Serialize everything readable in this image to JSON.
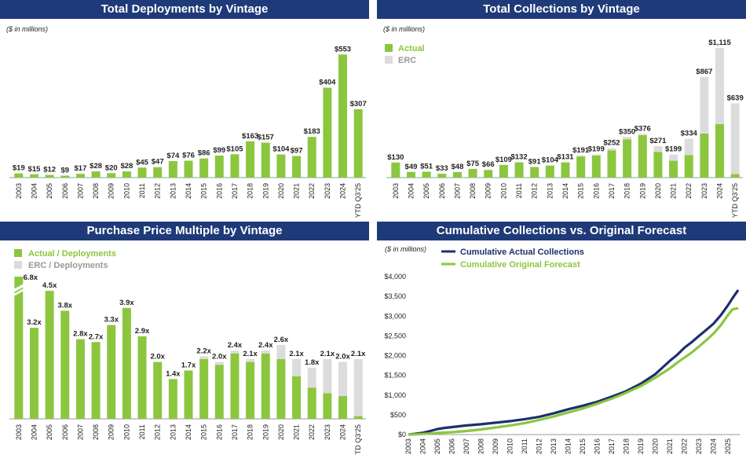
{
  "chart_data": [
    {
      "type": "bar",
      "title": "Total Deployments by Vintage",
      "subtitle": "($ in millions)",
      "categories": [
        "2003",
        "2004",
        "2005",
        "2006",
        "2007",
        "2008",
        "2009",
        "2010",
        "2011",
        "2012",
        "2013",
        "2014",
        "2015",
        "2016",
        "2017",
        "2018",
        "2019",
        "2020",
        "2021",
        "2022",
        "2023",
        "2024",
        "YTD Q3'25"
      ],
      "values": [
        19,
        15,
        12,
        9,
        17,
        28,
        20,
        28,
        45,
        47,
        74,
        76,
        86,
        99,
        105,
        163,
        157,
        104,
        97,
        183,
        404,
        553,
        307
      ],
      "data_labels": [
        "$19",
        "$15",
        "$12",
        "$9",
        "$17",
        "$28",
        "$20",
        "$28",
        "$45",
        "$47",
        "$74",
        "$76",
        "$86",
        "$99",
        "$105",
        "$163",
        "$157",
        "$104",
        "$97",
        "$183",
        "$404",
        "$553",
        "$307"
      ],
      "ylim": [
        0,
        600
      ],
      "color": "#8cc63f"
    },
    {
      "type": "bar",
      "stacked": true,
      "title": "Total Collections by Vintage",
      "subtitle": "($ in millions)",
      "categories": [
        "2003",
        "2004",
        "2005",
        "2006",
        "2007",
        "2008",
        "2009",
        "2010",
        "2011",
        "2012",
        "2013",
        "2014",
        "2015",
        "2016",
        "2017",
        "2018",
        "2019",
        "2020",
        "2021",
        "2022",
        "2023",
        "2024",
        "YTD Q3'25"
      ],
      "series": [
        {
          "name": "Actual",
          "color": "#8cc63f",
          "values": [
            130,
            49,
            51,
            33,
            48,
            75,
            66,
            109,
            132,
            91,
            104,
            131,
            182,
            190,
            235,
            330,
            365,
            220,
            145,
            194,
            380,
            460,
            30
          ]
        },
        {
          "name": "ERC",
          "color": "#dcdcdc",
          "values": [
            0,
            0,
            0,
            0,
            0,
            0,
            0,
            0,
            0,
            0,
            0,
            0,
            9,
            9,
            17,
            20,
            11,
            51,
            54,
            140,
            487,
            655,
            609
          ]
        }
      ],
      "totals": [
        130,
        49,
        51,
        33,
        48,
        75,
        66,
        109,
        132,
        91,
        104,
        131,
        191,
        199,
        252,
        350,
        376,
        271,
        199,
        334,
        867,
        1115,
        639
      ],
      "data_labels": [
        "$130",
        "$49",
        "$51",
        "$33",
        "$48",
        "$75",
        "$66",
        "$109",
        "$132",
        "$91",
        "$104",
        "$131",
        "$191",
        "$199",
        "$252",
        "$350",
        "$376",
        "$271",
        "$199",
        "$334",
        "$867",
        "$1,115",
        "$639"
      ],
      "ylim": [
        0,
        1150
      ],
      "legend_position": "top-left"
    },
    {
      "type": "bar",
      "stacked": true,
      "title": "Purchase Price Multiple by Vintage",
      "categories": [
        "2003",
        "2004",
        "2005",
        "2006",
        "2007",
        "2008",
        "2009",
        "2010",
        "2011",
        "2012",
        "2013",
        "2014",
        "2015",
        "2016",
        "2017",
        "2018",
        "2019",
        "2020",
        "2021",
        "2022",
        "2023",
        "2024",
        "YTD Q3'25"
      ],
      "series": [
        {
          "name": "Actual / Deployments",
          "color": "#8cc63f",
          "values": [
            6.8,
            3.2,
            4.5,
            3.8,
            2.8,
            2.7,
            3.3,
            3.9,
            2.9,
            2.0,
            1.4,
            1.7,
            2.1,
            1.9,
            2.3,
            2.0,
            2.3,
            2.1,
            1.5,
            1.1,
            0.9,
            0.8,
            0.1
          ]
        },
        {
          "name": "ERC / Deployments",
          "color": "#dcdcdc",
          "values": [
            0,
            0,
            0,
            0,
            0,
            0,
            0,
            0,
            0,
            0,
            0,
            0,
            0.1,
            0.1,
            0.1,
            0.1,
            0.1,
            0.5,
            0.6,
            0.7,
            1.2,
            1.2,
            2.0
          ]
        }
      ],
      "totals": [
        6.8,
        3.2,
        4.5,
        3.8,
        2.8,
        2.7,
        3.3,
        3.9,
        2.9,
        2.0,
        1.4,
        1.7,
        2.2,
        2.0,
        2.4,
        2.1,
        2.4,
        2.6,
        2.1,
        1.8,
        2.1,
        2.0,
        2.1
      ],
      "data_labels": [
        "6.8x",
        "3.2x",
        "4.5x",
        "3.8x",
        "2.8x",
        "2.7x",
        "3.3x",
        "3.9x",
        "2.9x",
        "2.0x",
        "1.4x",
        "1.7x",
        "2.2x",
        "2.0x",
        "2.4x",
        "2.1x",
        "2.4x",
        "2.6x",
        "2.1x",
        "1.8x",
        "2.1x",
        "2.0x",
        "2.1x"
      ],
      "ylim": [
        0,
        5.0
      ],
      "axis_break": true,
      "legend_position": "top-left"
    },
    {
      "type": "line",
      "title": "Cumulative Collections vs. Original Forecast",
      "subtitle": "($ in millions)",
      "x_labels": [
        "2003",
        "2004",
        "2005",
        "2006",
        "2007",
        "2008",
        "2009",
        "2010",
        "2011",
        "2012",
        "2013",
        "2014",
        "2015",
        "2016",
        "2017",
        "2018",
        "2019",
        "2020",
        "2021",
        "2022",
        "2023",
        "2024",
        "2025"
      ],
      "y_ticks": [
        "$0",
        "$500",
        "$1,000",
        "$1,500",
        "$2,000",
        "$2,500",
        "$3,000",
        "$3,500",
        "$4,000"
      ],
      "ylim": [
        0,
        4000
      ],
      "xlim": [
        2003,
        2025.8
      ],
      "series": [
        {
          "name": "Cumulative Actual Collections",
          "color": "#1f2f6b",
          "x": [
            2003,
            2003.5,
            2004,
            2004.5,
            2005,
            2005.5,
            2006,
            2007,
            2008,
            2009,
            2010,
            2011,
            2012,
            2013,
            2014,
            2015,
            2016,
            2017,
            2018,
            2019,
            2020,
            2021,
            2021.5,
            2022,
            2022.5,
            2023,
            2023.5,
            2024,
            2024.5,
            2025,
            2025.3,
            2025.7
          ],
          "y": [
            0,
            20,
            45,
            90,
            140,
            170,
            190,
            230,
            260,
            300,
            340,
            390,
            450,
            540,
            640,
            730,
            830,
            960,
            1100,
            1290,
            1530,
            1870,
            2020,
            2200,
            2340,
            2500,
            2650,
            2810,
            3020,
            3280,
            3450,
            3660
          ]
        },
        {
          "name": "Cumulative Original Forecast",
          "color": "#8cc63f",
          "x": [
            2003,
            2003.5,
            2004,
            2004.5,
            2005,
            2005.5,
            2006,
            2007,
            2008,
            2009,
            2010,
            2011,
            2012,
            2013,
            2014,
            2015,
            2016,
            2017,
            2018,
            2019,
            2020,
            2021,
            2021.5,
            2022,
            2022.5,
            2023,
            2023.5,
            2024,
            2024.5,
            2025,
            2025.3,
            2025.7
          ],
          "y": [
            0,
            5,
            15,
            25,
            40,
            50,
            60,
            90,
            130,
            180,
            230,
            290,
            370,
            460,
            560,
            660,
            780,
            910,
            1060,
            1230,
            1440,
            1680,
            1820,
            1950,
            2080,
            2230,
            2390,
            2560,
            2770,
            3030,
            3170,
            3200
          ]
        }
      ],
      "legend_position": "top-left"
    }
  ]
}
